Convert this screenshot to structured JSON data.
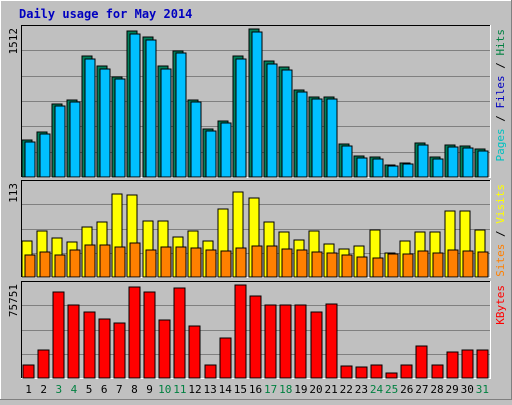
{
  "chart_data": {
    "type": "bar",
    "title": "Daily usage for May 2014",
    "categories": [
      "1",
      "2",
      "3",
      "4",
      "5",
      "6",
      "7",
      "8",
      "9",
      "10",
      "11",
      "12",
      "13",
      "14",
      "15",
      "16",
      "17",
      "18",
      "19",
      "20",
      "21",
      "22",
      "23",
      "24",
      "25",
      "26",
      "27",
      "28",
      "29",
      "30",
      "31"
    ],
    "weekend_days": [
      "3",
      "4",
      "10",
      "11",
      "17",
      "18",
      "24",
      "25",
      "31"
    ],
    "panels": [
      {
        "id": "hits",
        "ymax_label": "1512",
        "ymax": 1512,
        "legend": [
          {
            "label": "Pages",
            "color": "#00c0c0"
          },
          {
            "label": "Files",
            "color": "#0000c0"
          },
          {
            "label": "Hits",
            "color": "#008040"
          }
        ],
        "series": [
          {
            "name": "Hits",
            "color": "#00805c",
            "values": [
              380,
              470,
              760,
              800,
              1250,
              1150,
              1040,
              1510,
              1450,
              1150,
              1310,
              800,
              500,
              580,
              1250,
              1530,
              1200,
              1140,
              900,
              830,
              830,
              340,
              220,
              210,
              120,
              140,
              350,
              210,
              330,
              320,
              290
            ]
          },
          {
            "name": "Files",
            "color": "#00c0ff",
            "values": [
              360,
              450,
              740,
              780,
              1220,
              1120,
              1020,
              1480,
              1420,
              1120,
              1280,
              780,
              480,
              560,
              1220,
              1500,
              1170,
              1110,
              880,
              810,
              810,
              320,
              200,
              190,
              110,
              130,
              330,
              190,
              310,
              300,
              270
            ]
          }
        ]
      },
      {
        "id": "visits",
        "ymax_label": "113",
        "ymax": 113,
        "legend": [
          {
            "label": "Sites",
            "color": "#ff8000"
          },
          {
            "label": "Visits",
            "color": "#ffff00"
          }
        ],
        "series": [
          {
            "name": "Visits",
            "color": "#ffff00",
            "values": [
              45,
              57,
              49,
              44,
              62,
              68,
              103,
              102,
              69,
              69,
              50,
              57,
              45,
              84,
              106,
              98,
              68,
              56,
              46,
              57,
              41,
              35,
              38,
              58,
              30,
              45,
              56,
              56,
              82,
              82,
              58
            ]
          },
          {
            "name": "Sites",
            "color": "#ff8000",
            "values": [
              27,
              31,
              27,
              33,
              40,
              40,
              37,
              42,
              33,
              37,
              37,
              36,
              33,
              32,
              36,
              38,
              38,
              35,
              33,
              31,
              30,
              27,
              25,
              23,
              28,
              28,
              32,
              30,
              34,
              32,
              31
            ]
          }
        ]
      },
      {
        "id": "kbytes",
        "ymax_label": "75751",
        "ymax": 75751,
        "legend": [
          {
            "label": "KBytes",
            "color": "#ff0000"
          }
        ],
        "series": [
          {
            "name": "KBytes",
            "color": "#ff0000",
            "values": [
              11000,
              23000,
              72000,
              61000,
              55000,
              49000,
              46000,
              76000,
              72000,
              48000,
              75000,
              43000,
              11000,
              33000,
              77000,
              68000,
              61000,
              61000,
              61000,
              55000,
              62000,
              10000,
              9000,
              11000,
              4000,
              11000,
              27000,
              11000,
              22000,
              23000,
              23000
            ]
          }
        ]
      }
    ]
  }
}
